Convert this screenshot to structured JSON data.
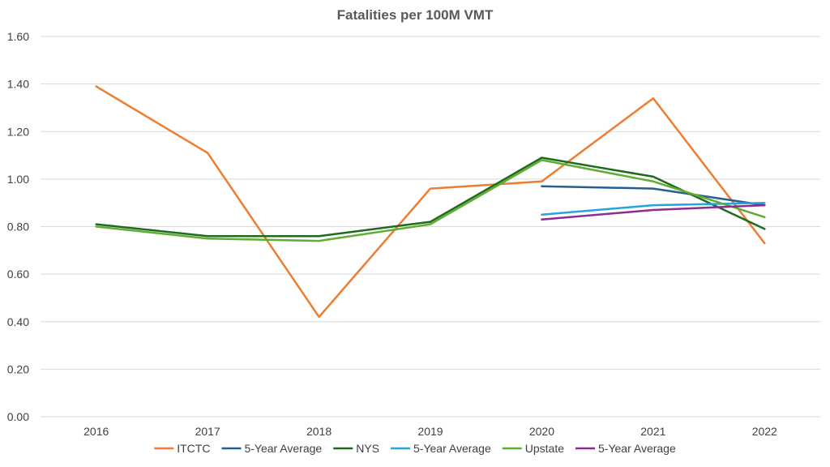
{
  "chart_data": {
    "type": "line",
    "title": "Fatalities per 100M VMT",
    "xlabel": "",
    "ylabel": "",
    "categories": [
      "2016",
      "2017",
      "2018",
      "2019",
      "2020",
      "2021",
      "2022"
    ],
    "ylim": [
      0,
      1.6
    ],
    "yticks": [
      "0.00",
      "0.20",
      "0.40",
      "0.60",
      "0.80",
      "1.00",
      "1.20",
      "1.40",
      "1.60"
    ],
    "grid": true,
    "legend_position": "bottom",
    "series": [
      {
        "name": "ITCTC",
        "color": "#ed7d31",
        "values": [
          1.39,
          1.11,
          0.42,
          0.96,
          0.99,
          1.34,
          0.73
        ]
      },
      {
        "name": "5-Year Average",
        "color": "#255e91",
        "values": [
          null,
          null,
          null,
          null,
          0.97,
          0.96,
          0.89
        ]
      },
      {
        "name": "NYS",
        "color": "#1e6b1e",
        "values": [
          0.81,
          0.76,
          0.76,
          0.82,
          1.09,
          1.01,
          0.79
        ]
      },
      {
        "name": "5-Year Average",
        "color": "#27a3dd",
        "values": [
          null,
          null,
          null,
          null,
          0.85,
          0.89,
          0.9
        ]
      },
      {
        "name": "Upstate",
        "color": "#5fad32",
        "values": [
          0.8,
          0.75,
          0.74,
          0.81,
          1.08,
          0.99,
          0.84
        ]
      },
      {
        "name": "5-Year Average",
        "color": "#8e2b93",
        "values": [
          null,
          null,
          null,
          null,
          0.83,
          0.87,
          0.89
        ]
      }
    ]
  }
}
